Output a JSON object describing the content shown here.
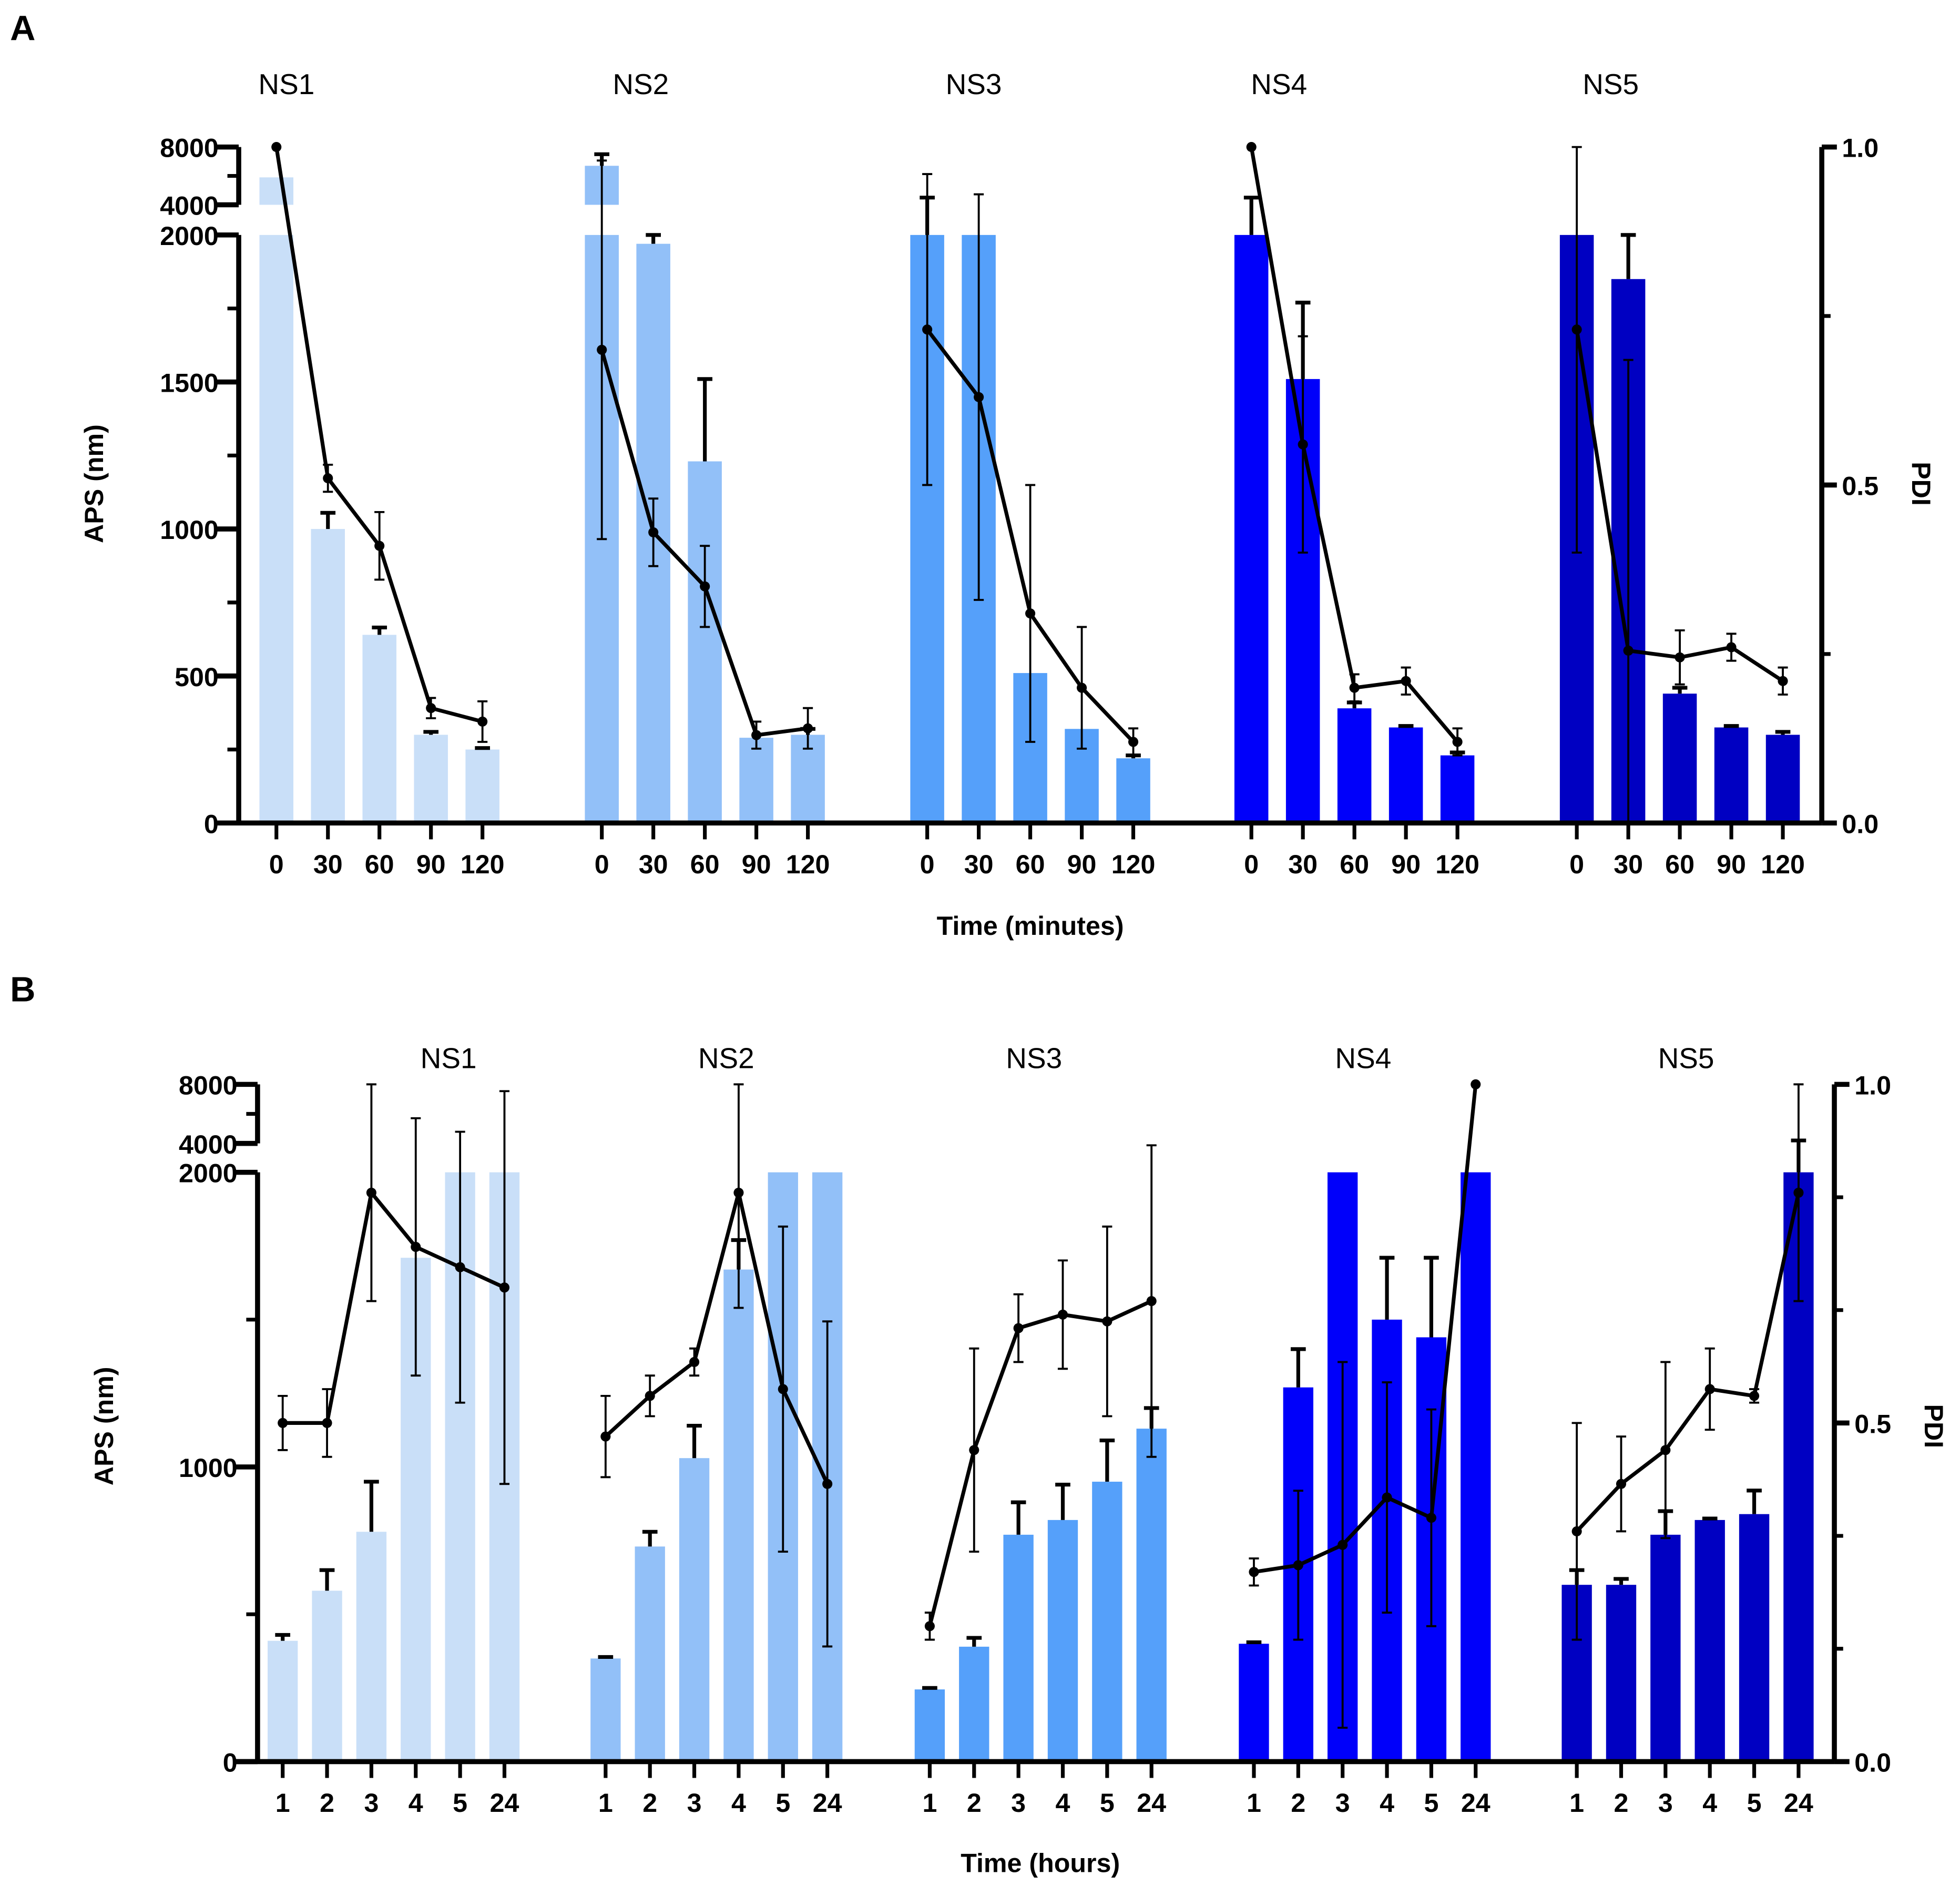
{
  "chart_data": [
    {
      "type": "bar",
      "panel_label": "A",
      "xlabel": "Time (minutes)",
      "ylabel": "APS (nm)",
      "y2label": "PDI",
      "yticks": [
        "0",
        "500",
        "1000",
        "1500",
        "2000",
        "4000",
        "8000"
      ],
      "ytick_values": [
        0,
        500,
        1000,
        1500,
        2000,
        4000,
        8000
      ],
      "y_axis_break": [
        2000,
        4000
      ],
      "y2ticks": [
        "0.0",
        "0.5",
        "1.0"
      ],
      "y2lim": [
        0,
        1
      ],
      "categories": [
        "0",
        "30",
        "60",
        "90",
        "120"
      ],
      "groups": [
        {
          "name": "NS1",
          "color": "#c9dff8",
          "aps": [
            5900,
            1000,
            640,
            300,
            250
          ],
          "aps_sd": [
            0,
            55,
            25,
            10,
            5
          ],
          "pdi": [
            1.0,
            0.51,
            0.41,
            0.17,
            0.15
          ],
          "pdi_sd": [
            0,
            0.02,
            0.05,
            0.015,
            0.03
          ]
        },
        {
          "name": "NS2",
          "color": "#92c0f8",
          "aps": [
            6700,
            1970,
            1230,
            290,
            300
          ],
          "aps_sd": [
            800,
            30,
            280,
            0,
            20
          ],
          "pdi": [
            0.7,
            0.43,
            0.35,
            0.13,
            0.14
          ],
          "pdi_sd": [
            0.28,
            0.05,
            0.06,
            0.02,
            0.03
          ]
        },
        {
          "name": "NS3",
          "color": "#55a0fa",
          "aps": [
            2000,
            2000,
            510,
            320,
            220
          ],
          "aps_sd": [
            2500,
            0,
            0,
            0,
            10
          ],
          "pdi": [
            0.73,
            0.63,
            0.31,
            0.2,
            0.12
          ],
          "pdi_sd": [
            0.23,
            0.3,
            0.19,
            0.09,
            0.02
          ]
        },
        {
          "name": "NS4",
          "color": "#0000fa",
          "aps": [
            2000,
            1510,
            390,
            325,
            230
          ],
          "aps_sd": [
            2500,
            260,
            20,
            5,
            10
          ],
          "pdi": [
            1.0,
            0.56,
            0.2,
            0.21,
            0.12
          ],
          "pdi_sd": [
            0,
            0.16,
            0.02,
            0.02,
            0.02
          ]
        },
        {
          "name": "NS5",
          "color": "#0000c2",
          "aps": [
            2000,
            1850,
            440,
            325,
            300
          ],
          "aps_sd": [
            0,
            150,
            20,
            5,
            10
          ],
          "pdi": [
            0.73,
            0.255,
            0.245,
            0.26,
            0.21
          ],
          "pdi_sd": [
            0.33,
            0.43,
            0.04,
            0.02,
            0.02
          ]
        }
      ]
    },
    {
      "type": "bar",
      "panel_label": "B",
      "xlabel": "Time (hours)",
      "ylabel": "APS (nm)",
      "y2label": "PDI",
      "yticks": [
        "0",
        "1000",
        "2000",
        "4000",
        "8000"
      ],
      "ytick_values": [
        0,
        1000,
        2000,
        4000,
        8000
      ],
      "y_axis_break": [
        2000,
        4000
      ],
      "y2ticks": [
        "0.0",
        "0.5",
        "1.0"
      ],
      "y2lim": [
        0,
        1
      ],
      "categories": [
        "1",
        "2",
        "3",
        "4",
        "5",
        "24"
      ],
      "groups": [
        {
          "name": "NS1",
          "color": "#c9dff8",
          "aps": [
            410,
            580,
            780,
            1710,
            2000,
            2000
          ],
          "aps_sd": [
            20,
            70,
            170,
            0,
            0,
            0
          ],
          "pdi": [
            0.5,
            0.5,
            0.84,
            0.76,
            0.73,
            0.7
          ],
          "pdi_sd": [
            0.04,
            0.05,
            0.16,
            0.19,
            0.2,
            0.29
          ]
        },
        {
          "name": "NS2",
          "color": "#92c0f8",
          "aps": [
            350,
            730,
            1030,
            1670,
            2000,
            2000
          ],
          "aps_sd": [
            5,
            50,
            110,
            100,
            0,
            0
          ],
          "pdi": [
            0.48,
            0.54,
            0.59,
            0.84,
            0.55,
            0.41
          ],
          "pdi_sd": [
            0.06,
            0.03,
            0.02,
            0.17,
            0.24,
            0.24
          ]
        },
        {
          "name": "NS3",
          "color": "#55a0fa",
          "aps": [
            245,
            390,
            770,
            820,
            950,
            1130
          ],
          "aps_sd": [
            5,
            30,
            110,
            120,
            140,
            70
          ],
          "pdi": [
            0.2,
            0.46,
            0.64,
            0.66,
            0.65,
            0.68
          ],
          "pdi_sd": [
            0.02,
            0.15,
            0.05,
            0.08,
            0.14,
            0.23
          ]
        },
        {
          "name": "NS4",
          "color": "#0000fa",
          "aps": [
            400,
            1270,
            2000,
            1500,
            1440,
            2000
          ],
          "aps_sd": [
            5,
            130,
            0,
            210,
            270,
            0
          ],
          "pdi": [
            0.28,
            0.29,
            0.32,
            0.39,
            0.36,
            1.0
          ],
          "pdi_sd": [
            0.02,
            0.11,
            0.27,
            0.17,
            0.16,
            0
          ]
        },
        {
          "name": "NS5",
          "color": "#0000c2",
          "aps": [
            600,
            600,
            770,
            820,
            840,
            2000
          ],
          "aps_sd": [
            50,
            20,
            80,
            5,
            80,
            2200
          ],
          "pdi": [
            0.34,
            0.41,
            0.46,
            0.55,
            0.54,
            0.84
          ],
          "pdi_sd": [
            0.16,
            0.07,
            0.13,
            0.06,
            0.01,
            0.16
          ]
        }
      ]
    }
  ]
}
